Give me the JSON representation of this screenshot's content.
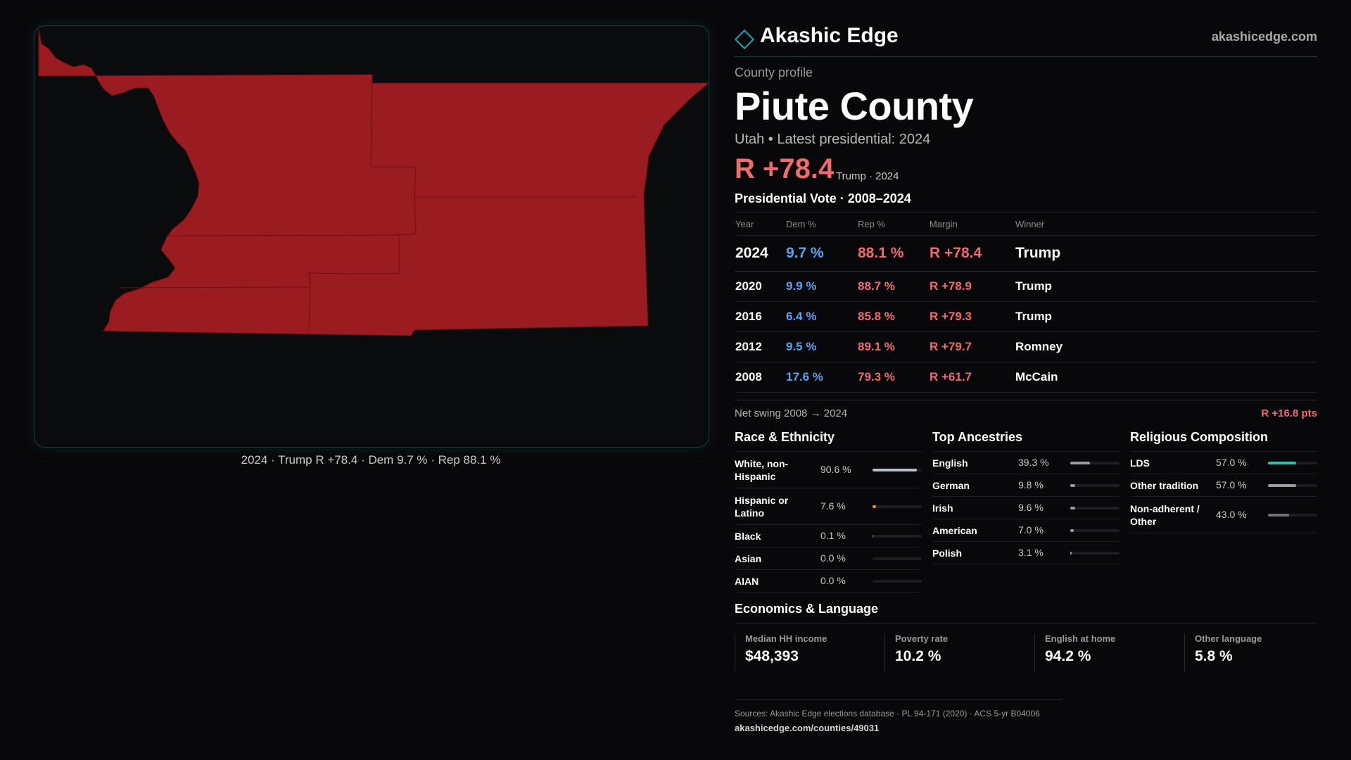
{
  "brand": {
    "name": "Akashic Edge",
    "url": "akashicedge.com"
  },
  "profile": {
    "eyebrow": "County profile",
    "county": "Piute County",
    "subtitle": "Utah • Latest presidential: 2024",
    "margin_big": "R +78.4",
    "margin_note": "Trump · 2024"
  },
  "map": {
    "caption": "2024 · Trump R +78.4 · Dem 9.7 % · Rep 88.1 %",
    "fill_color": "#9b1c20",
    "outline_color": "#6a1013"
  },
  "votes": {
    "title": "Presidential Vote · 2008–2024",
    "headers": {
      "year": "Year",
      "dem": "Dem %",
      "rep": "Rep %",
      "margin": "Margin",
      "winner": "Winner"
    },
    "rows": [
      {
        "year": "2024",
        "dem": "9.7 %",
        "rep": "88.1 %",
        "margin": "R +78.4",
        "winner": "Trump"
      },
      {
        "year": "2020",
        "dem": "9.9 %",
        "rep": "88.7 %",
        "margin": "R +78.9",
        "winner": "Trump"
      },
      {
        "year": "2016",
        "dem": "6.4 %",
        "rep": "85.8 %",
        "margin": "R +79.3",
        "winner": "Trump"
      },
      {
        "year": "2012",
        "dem": "9.5 %",
        "rep": "89.1 %",
        "margin": "R +79.7",
        "winner": "Romney"
      },
      {
        "year": "2008",
        "dem": "17.6 %",
        "rep": "79.3 %",
        "margin": "R +61.7",
        "winner": "McCain"
      }
    ],
    "swing_label": "Net swing 2008 → 2024",
    "swing_value": "R +16.8 pts"
  },
  "race": {
    "title": "Race & Ethnicity",
    "items": [
      {
        "label": "White, non-Hispanic",
        "value": "90.6 %",
        "pct": 90.6,
        "color": "#b9bfca"
      },
      {
        "label": "Hispanic or Latino",
        "value": "7.6 %",
        "pct": 7.6,
        "color": "#e0a020"
      },
      {
        "label": "Black",
        "value": "0.1 %",
        "pct": 0.1,
        "color": "#8b8b8b"
      },
      {
        "label": "Asian",
        "value": "0.0 %",
        "pct": 0.0,
        "color": "#8b8b8b"
      },
      {
        "label": "AIAN",
        "value": "0.0 %",
        "pct": 0.0,
        "color": "#8b8b8b"
      }
    ]
  },
  "ancestry": {
    "title": "Top Ancestries",
    "items": [
      {
        "label": "English",
        "value": "39.3 %",
        "pct": 39.3,
        "color": "#9a9ca3"
      },
      {
        "label": "German",
        "value": "9.8 %",
        "pct": 9.8,
        "color": "#9a9ca3"
      },
      {
        "label": "Irish",
        "value": "9.6 %",
        "pct": 9.6,
        "color": "#9a9ca3"
      },
      {
        "label": "American",
        "value": "7.0 %",
        "pct": 7.0,
        "color": "#9a9ca3"
      },
      {
        "label": "Polish",
        "value": "3.1 %",
        "pct": 3.1,
        "color": "#9a9ca3"
      }
    ]
  },
  "religion": {
    "title": "Religious Composition",
    "items": [
      {
        "label": "LDS",
        "value": "57.0 %",
        "pct": 57.0,
        "color": "#2ec4b0"
      },
      {
        "label": "Other tradition",
        "value": "57.0 %",
        "pct": 57.0,
        "color": "#9a9ca3"
      },
      {
        "label": "Non-adherent / Other",
        "value": "43.0 %",
        "pct": 43.0,
        "color": "#6f7178"
      }
    ]
  },
  "economics": {
    "title": "Economics & Language",
    "items": [
      {
        "label": "Median HH income",
        "value": "$48,393"
      },
      {
        "label": "Poverty rate",
        "value": "10.2 %"
      },
      {
        "label": "English at home",
        "value": "94.2 %"
      },
      {
        "label": "Other language",
        "value": "5.8 %"
      }
    ]
  },
  "footer": {
    "sources": "Sources: Akashic Edge elections database · PL 94-171 (2020) · ACS 5-yr B04006",
    "url": "akashicedge.com/counties/49031"
  }
}
